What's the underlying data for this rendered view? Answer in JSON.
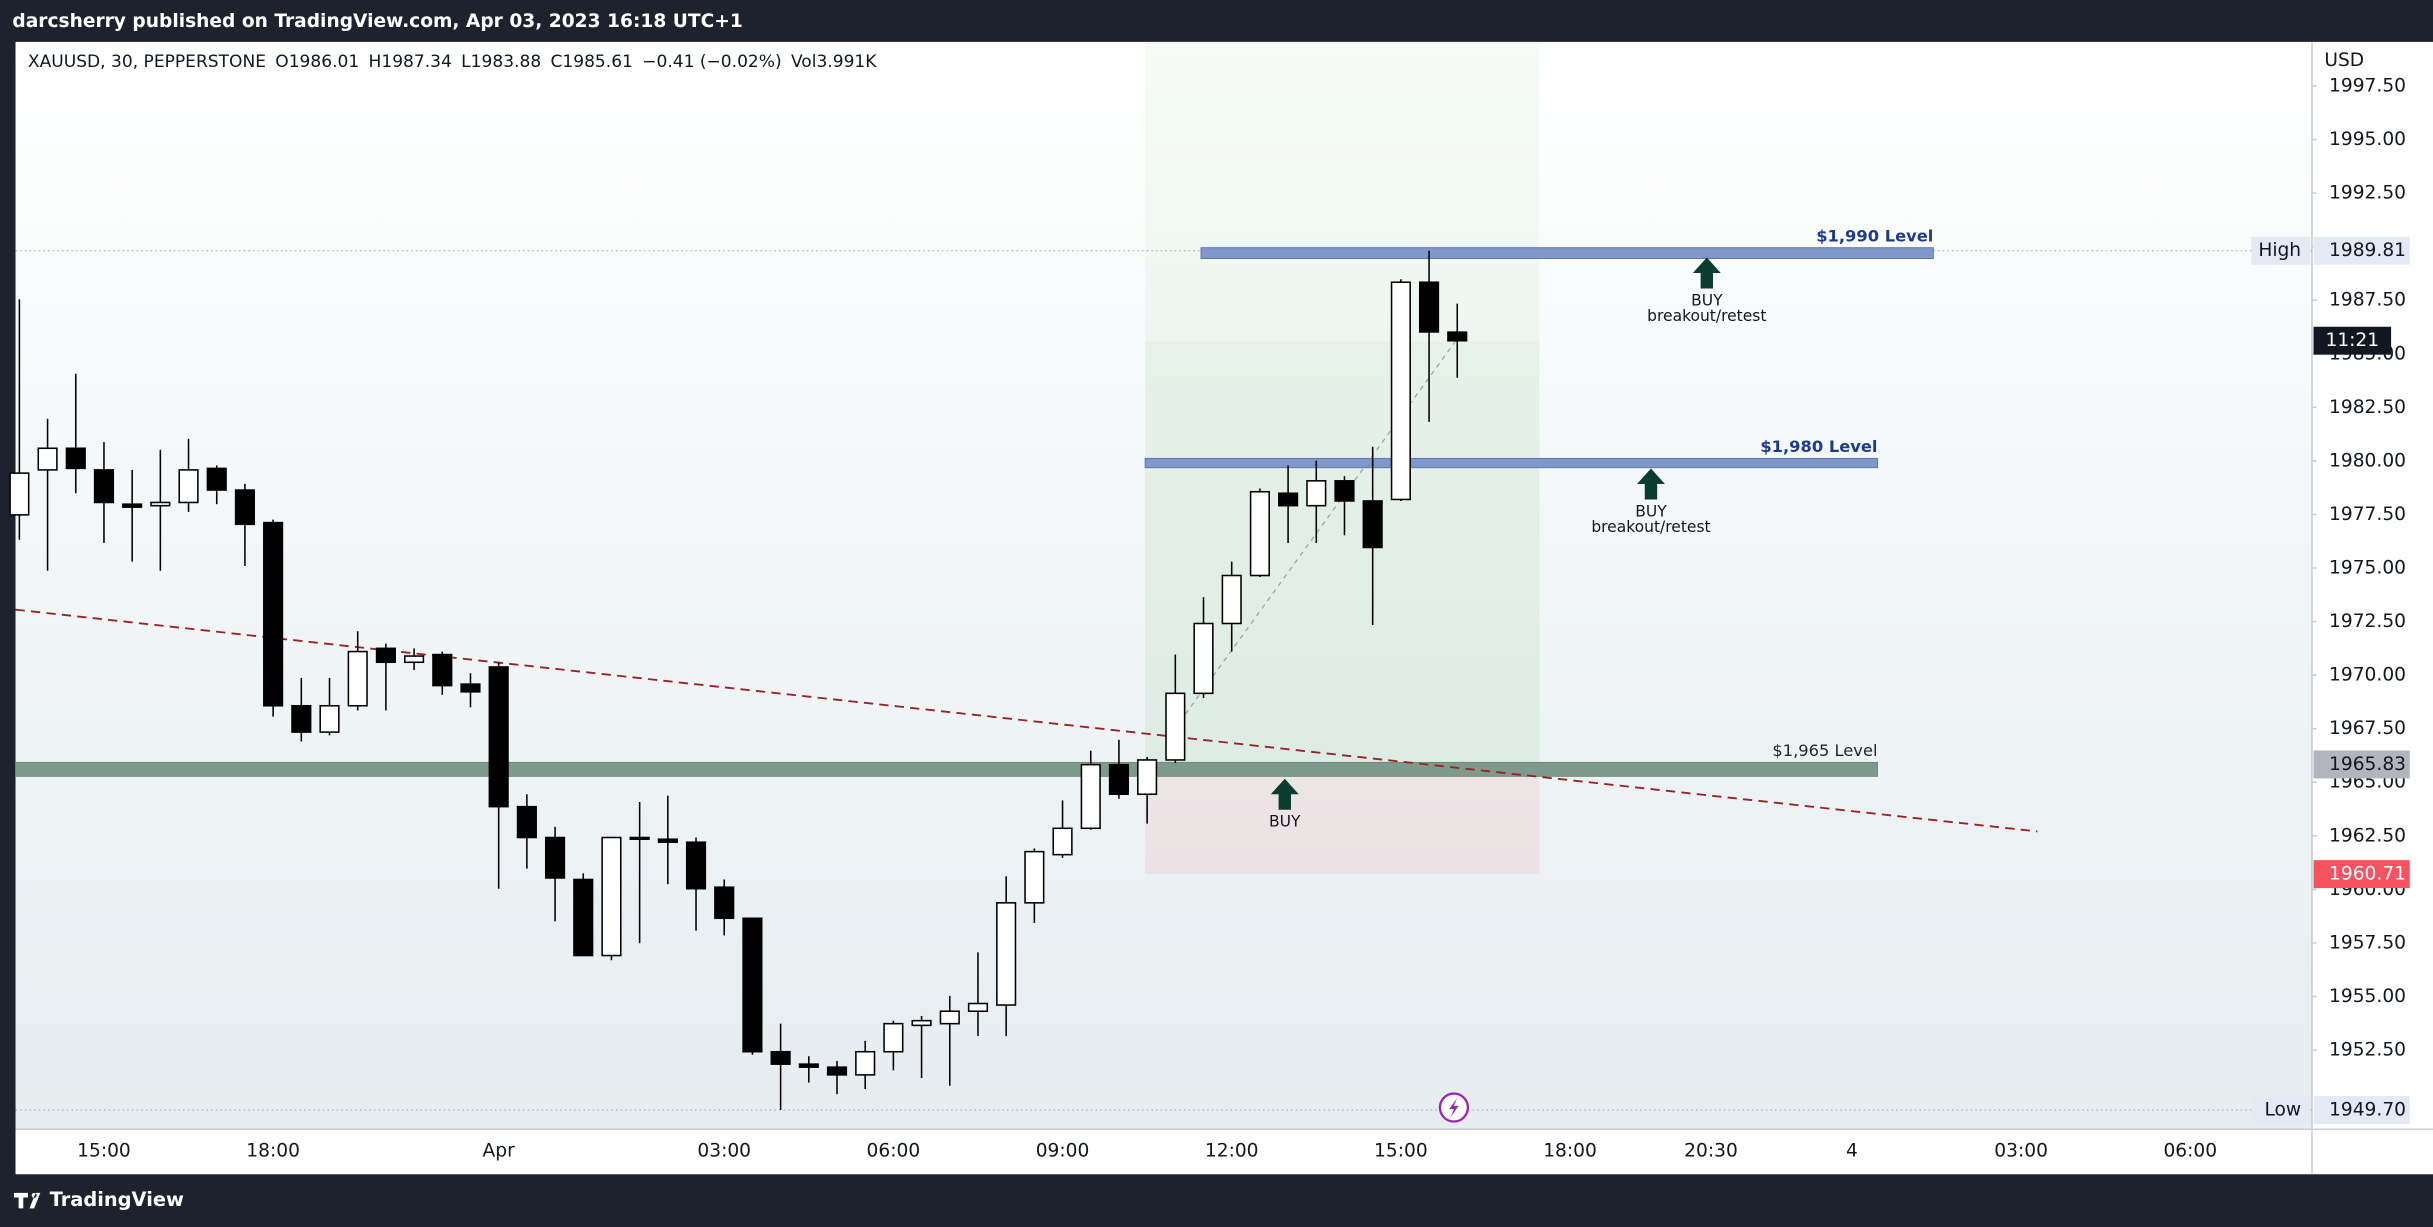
{
  "header": {
    "title": "darcsherry published on TradingView.com, Apr 03, 2023 16:18 UTC+1",
    "footer": "TradingView"
  },
  "chart_data": {
    "type": "candlestick",
    "legend_items": [
      "XAUUSD, 30, PEPPERSTONE",
      "O1986.01",
      "H1987.34",
      "L1983.88",
      "C1985.61",
      "−0.41 (−0.02%)",
      "Vol3.991K"
    ],
    "currency": "USD",
    "categories": [
      null,
      null,
      null,
      "15:00",
      null,
      null,
      null,
      null,
      null,
      "18:00",
      null,
      null,
      null,
      null,
      null,
      null,
      null,
      "Apr",
      null,
      null,
      null,
      null,
      null,
      null,
      null,
      "03:00",
      null,
      null,
      null,
      null,
      null,
      "06:00",
      null,
      null,
      null,
      null,
      null,
      "09:00",
      null,
      null,
      null,
      null,
      null,
      "12:00",
      null,
      null,
      null,
      null,
      null,
      "15:00",
      null,
      null,
      null,
      null,
      null,
      "18:00",
      null,
      null,
      null,
      null,
      "20:30",
      null,
      null,
      null,
      null,
      "4",
      null,
      null,
      null,
      null,
      null,
      "03:00",
      null,
      null,
      null,
      null,
      null,
      "06:00"
    ],
    "open": [
      1977.48,
      1979.58,
      1980.59,
      1979.58,
      1977.98,
      1977.91,
      1978.06,
      1979.65,
      1978.64,
      1977.12,
      1968.57,
      1967.34,
      1968.57,
      1971.25,
      1970.6,
      1970.96,
      1969.58,
      1970.38,
      1963.86,
      1962.42,
      1960.46,
      1956.91,
      1962.42,
      1962.34,
      1962.2,
      1960.1,
      1958.65,
      1952.42,
      1951.84,
      1951.7,
      1951.34,
      1952.42,
      1953.65,
      1953.73,
      1954.31,
      1954.6,
      1959.37,
      1961.62,
      1962.85,
      1965.82,
      1964.44,
      1966.04,
      1969.15,
      1972.41,
      1974.65,
      1978.49,
      1977.91,
      1979.07,
      1978.13,
      1978.2,
      1988.34,
      1986.01,
      null,
      null,
      null,
      null,
      null,
      null,
      null,
      null,
      null,
      null,
      null,
      null,
      null,
      null,
      null,
      null,
      null,
      null,
      null,
      null,
      null,
      null,
      null,
      null,
      null,
      null
    ],
    "high": [
      1987.54,
      1981.97,
      1984.07,
      1980.88,
      1979.58,
      1980.52,
      1981.03,
      1979.79,
      1978.93,
      1977.26,
      1969.87,
      1969.87,
      1972.05,
      1971.47,
      1971.25,
      1971.1,
      1970.09,
      1970.6,
      1964.44,
      1962.92,
      1960.75,
      1962.42,
      1964.08,
      1964.37,
      1962.42,
      1960.46,
      1958.65,
      1953.73,
      1952.21,
      1951.99,
      1952.93,
      1953.87,
      1954.09,
      1955.03,
      1957.06,
      1960.61,
      1961.91,
      1964.15,
      1966.47,
      1966.98,
      1966.18,
      1970.96,
      1973.64,
      1975.3,
      1978.71,
      1979.79,
      1980.01,
      1979.29,
      1980.66,
      1988.48,
      1989.81,
      1987.34,
      null,
      null,
      null,
      null,
      null,
      null,
      null,
      null,
      null,
      null,
      null,
      null,
      null,
      null,
      null,
      null,
      null,
      null,
      null,
      null,
      null,
      null,
      null,
      null,
      null,
      null
    ],
    "low": [
      1976.32,
      1974.87,
      1978.49,
      1976.17,
      1975.3,
      1974.87,
      1977.62,
      1977.98,
      1975.09,
      1968.06,
      1966.9,
      1967.19,
      1968.35,
      1968.35,
      1970.24,
      1969.08,
      1968.5,
      1960.03,
      1960.97,
      1958.51,
      1956.91,
      1956.69,
      1957.49,
      1960.24,
      1958.07,
      1957.85,
      1952.28,
      1949.7,
      1950.98,
      1950.44,
      1950.68,
      1951.55,
      1951.19,
      1950.83,
      1953.15,
      1953.15,
      1958.43,
      1961.47,
      1962.78,
      1964.23,
      1963.07,
      1965.89,
      1968.93,
      1971.1,
      1974.58,
      1976.17,
      1976.17,
      1976.53,
      1972.34,
      1978.13,
      1981.82,
      1983.88,
      null,
      null,
      null,
      null,
      null,
      null,
      null,
      null,
      null,
      null,
      null,
      null,
      null,
      null,
      null,
      null,
      null,
      null,
      null,
      null,
      null,
      null,
      null,
      null,
      null,
      null
    ],
    "close": [
      1979.43,
      1980.59,
      1979.65,
      1978.06,
      1977.84,
      1978.06,
      1979.58,
      1978.64,
      1977.04,
      1968.57,
      1967.34,
      1968.57,
      1971.1,
      1970.6,
      1970.89,
      1969.51,
      1969.22,
      1963.86,
      1962.42,
      1960.53,
      1956.91,
      1962.42,
      1962.34,
      1962.2,
      1960.03,
      1958.65,
      1952.42,
      1951.84,
      1951.7,
      1951.34,
      1952.42,
      1953.73,
      1953.87,
      1954.31,
      1954.67,
      1959.37,
      1961.76,
      1962.85,
      1965.82,
      1964.44,
      1966.04,
      1969.15,
      1972.41,
      1974.65,
      1978.56,
      1977.91,
      1979.07,
      1978.13,
      1975.96,
      1988.34,
      1986.02,
      1985.61,
      null,
      null,
      null,
      null,
      null,
      null,
      null,
      null,
      null,
      null,
      null,
      null,
      null,
      null,
      null,
      null,
      null,
      null,
      null,
      null,
      null,
      null,
      null,
      null,
      null,
      null
    ],
    "up_color": "#ffffff",
    "down_color": "#000000",
    "ylim": [
      1948.8,
      1999.56
    ],
    "yticks": [
      {
        "value": 1952.5,
        "label": "1952.50"
      },
      {
        "value": 1955,
        "label": "1955.00"
      },
      {
        "value": 1957.5,
        "label": "1957.50"
      },
      {
        "value": 1960,
        "label": "1960.00"
      },
      {
        "value": 1962.5,
        "label": "1962.50"
      },
      {
        "value": 1965,
        "label": "1965.00"
      },
      {
        "value": 1967.5,
        "label": "1967.50"
      },
      {
        "value": 1970,
        "label": "1970.00"
      },
      {
        "value": 1972.5,
        "label": "1972.50"
      },
      {
        "value": 1975,
        "label": "1975.00"
      },
      {
        "value": 1977.5,
        "label": "1977.50"
      },
      {
        "value": 1980,
        "label": "1980.00"
      },
      {
        "value": 1982.5,
        "label": "1982.50"
      },
      {
        "value": 1985,
        "label": "1985.00"
      },
      {
        "value": 1987.5,
        "label": "1987.50"
      },
      {
        "value": 1990,
        "label": "1990.00"
      },
      {
        "value": 1992.5,
        "label": "1992.50"
      },
      {
        "value": 1995,
        "label": "1995.00"
      },
      {
        "value": 1997.5,
        "label": "1997.50"
      }
    ],
    "grid": false,
    "high_marker": {
      "label": "High",
      "value": 1989.81
    },
    "low_marker": {
      "label": "Low",
      "value": {
        "value": 1949.7,
        "label": "1949.70"
      }
    },
    "entry_badge": {
      "value": 1965.83,
      "color": "#b2b5be"
    },
    "stop_badge": {
      "value": 1960.71,
      "color": "#f7525f"
    },
    "countdown": "11:21",
    "levels": [
      {
        "label": "$1,990 Level",
        "value": 1989.7,
        "color": "#7f97c9"
      },
      {
        "label": "$1,980 Level",
        "value": 1979.9,
        "color": "#7f97c9"
      },
      {
        "label": "$1,965 Level",
        "value": 1965.6,
        "color": "#7e9a8c"
      }
    ],
    "annotations": [
      {
        "lines": [
          "BUY",
          "breakout/retest"
        ]
      },
      {
        "lines": [
          "BUY",
          "breakout/retest"
        ]
      },
      {
        "lines": [
          "BUY"
        ]
      }
    ]
  }
}
